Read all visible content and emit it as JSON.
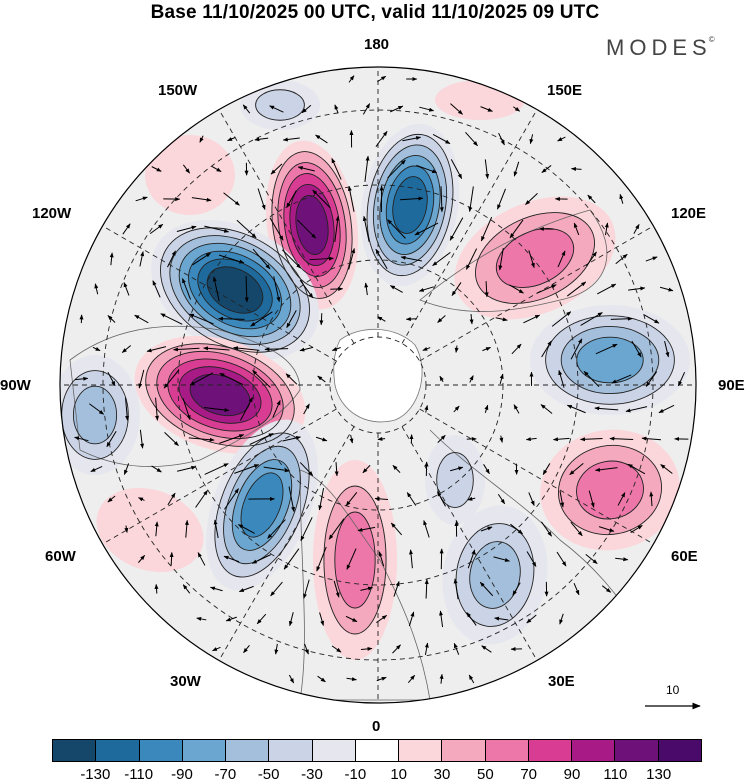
{
  "title": "Base 11/10/2025 00 UTC, valid 11/10/2025 09 UTC",
  "brand": "MODES",
  "brand_mark": "©",
  "longitude_labels": {
    "lon_180": "180",
    "lon_150e": "150E",
    "lon_120e": "120E",
    "lon_90e": "90E",
    "lon_60e": "60E",
    "lon_30e": "30E",
    "lon_0": "0",
    "lon_30w": "30W",
    "lon_60w": "60W",
    "lon_90w": "90W",
    "lon_120w": "120W",
    "lon_150w": "150W"
  },
  "reference_vector": {
    "label": "10"
  },
  "colorbar": {
    "colors": [
      "#15476b",
      "#1f6a9c",
      "#3b88bd",
      "#6aa6cf",
      "#a3bfdb",
      "#cbd4e6",
      "#e6e6ef",
      "#ffffff",
      "#fbd6da",
      "#f4a9bf",
      "#ec77a8",
      "#d83d93",
      "#a81b87",
      "#6e1179",
      "#4a0a6a"
    ],
    "ticks": [
      "-130",
      "-110",
      "-90",
      "-70",
      "-50",
      "-30",
      "-10",
      "10",
      "30",
      "50",
      "70",
      "90",
      "110",
      "130"
    ]
  },
  "chart_data": {
    "type": "map",
    "projection": "north polar stereographic",
    "field": "anomaly (shaded) with wind vectors",
    "centers": [
      {
        "sign": "positive",
        "value": 130,
        "sector": "150W-180"
      },
      {
        "sign": "negative",
        "value": -130,
        "sector": "120W-150W"
      },
      {
        "sign": "positive",
        "value": 130,
        "sector": "90W-120W"
      },
      {
        "sign": "negative",
        "value": -90,
        "sector": "30W-60W"
      },
      {
        "sign": "negative",
        "value": -110,
        "sector": "150E-180"
      },
      {
        "sign": "positive",
        "value": 70,
        "sector": "120E-150E"
      },
      {
        "sign": "negative",
        "value": -70,
        "sector": "90E"
      },
      {
        "sign": "positive",
        "value": 70,
        "sector": "60E-90E"
      },
      {
        "sign": "negative",
        "value": -50,
        "sector": "30E-60E"
      },
      {
        "sign": "positive",
        "value": 70,
        "sector": "0-30W"
      },
      {
        "sign": "negative",
        "value": -50,
        "sector": "90W"
      }
    ]
  }
}
